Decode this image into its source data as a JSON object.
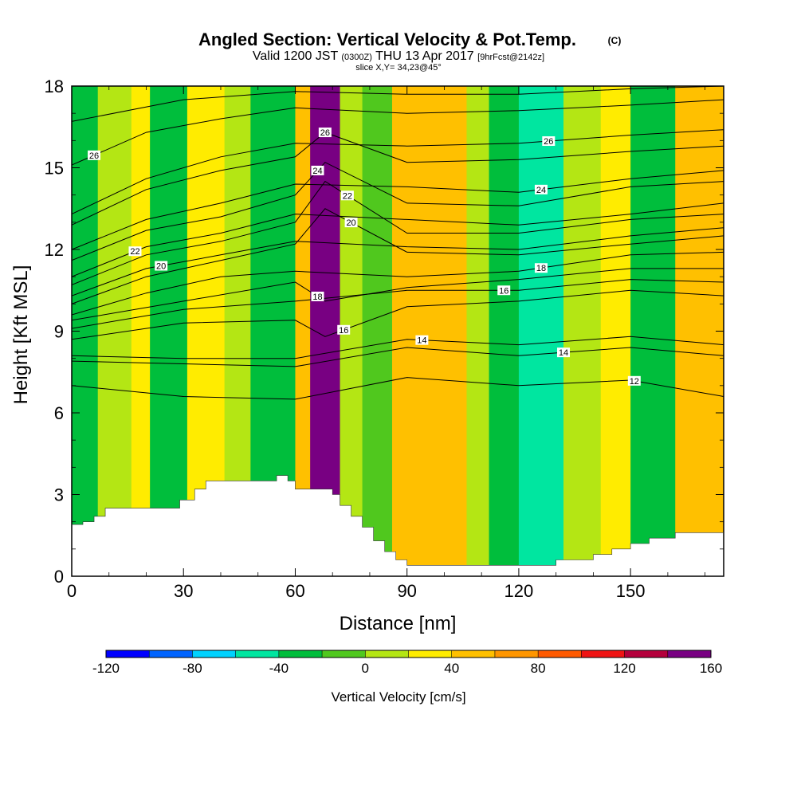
{
  "header": {
    "title": "Angled Section: Vertical Velocity & Pot.Temp.",
    "copyright": "(C)",
    "valid_prefix": "Valid 1200 JST",
    "utc": "(0300Z)",
    "valid_date": "THU 13 Apr 2017",
    "forecast": "[9hrFcst@2142z]",
    "slice": "slice X,Y= 34,23@45°"
  },
  "chart_data": {
    "type": "heatmap",
    "xlabel": "Distance [nm]",
    "ylabel": "Height [Kft MSL]",
    "xlim": [
      0,
      175
    ],
    "ylim": [
      0,
      18
    ],
    "xticks": [
      0,
      30,
      60,
      90,
      120,
      150
    ],
    "yticks": [
      0,
      3,
      6,
      9,
      12,
      15,
      18
    ],
    "colorbar": {
      "label": "Vertical Velocity [cm/s]",
      "tick_labels": [
        "-120",
        "-80",
        "-40",
        "0",
        "40",
        "80",
        "120",
        "160"
      ],
      "levels": [
        -120,
        -100,
        -80,
        -60,
        -40,
        -20,
        0,
        20,
        40,
        60,
        80,
        100,
        120,
        140,
        160
      ],
      "colors": [
        "#0000ff",
        "#0064ff",
        "#00d2ff",
        "#00e6a0",
        "#00be3c",
        "#50c81e",
        "#b4e614",
        "#ffec00",
        "#ffc000",
        "#ff9600",
        "#ff5a00",
        "#f01414",
        "#b4003c",
        "#780082"
      ]
    },
    "colorbar_label_values": [
      -120,
      -80,
      -40,
      0,
      40,
      80,
      120,
      160
    ],
    "vv_bands": [
      {
        "x0": 0,
        "x1": 7,
        "value": -30
      },
      {
        "x0": 7,
        "x1": 16,
        "value": 10
      },
      {
        "x0": 16,
        "x1": 21,
        "value": 35
      },
      {
        "x0": 21,
        "x1": 31,
        "value": -25
      },
      {
        "x0": 31,
        "x1": 41,
        "value": 30
      },
      {
        "x0": 41,
        "x1": 48,
        "value": 5
      },
      {
        "x0": 48,
        "x1": 60,
        "value": -35
      },
      {
        "x0": 60,
        "x1": 64,
        "value": 45
      },
      {
        "x0": 64,
        "x1": 72,
        "value": 150
      },
      {
        "x0": 72,
        "x1": 78,
        "value": 10
      },
      {
        "x0": 78,
        "x1": 86,
        "value": -10
      },
      {
        "x0": 86,
        "x1": 106,
        "value": 45
      },
      {
        "x0": 106,
        "x1": 112,
        "value": 10
      },
      {
        "x0": 112,
        "x1": 120,
        "value": -30
      },
      {
        "x0": 120,
        "x1": 132,
        "value": -45
      },
      {
        "x0": 132,
        "x1": 142,
        "value": 10
      },
      {
        "x0": 142,
        "x1": 150,
        "value": 30
      },
      {
        "x0": 150,
        "x1": 162,
        "value": -25
      },
      {
        "x0": 162,
        "x1": 175,
        "value": 40
      }
    ],
    "terrain": {
      "x": [
        0,
        3,
        6,
        9,
        21,
        29,
        33,
        36,
        55,
        58,
        60,
        65,
        70,
        72,
        75,
        78,
        81,
        84,
        87,
        90,
        125,
        130,
        140,
        145,
        150,
        155,
        162,
        175
      ],
      "height": [
        1.9,
        2.0,
        2.2,
        2.5,
        2.5,
        2.8,
        3.2,
        3.5,
        3.7,
        3.5,
        3.2,
        3.2,
        3.0,
        2.6,
        2.2,
        1.8,
        1.3,
        0.9,
        0.6,
        0.4,
        0.4,
        0.6,
        0.8,
        1.0,
        1.2,
        1.4,
        1.6,
        1.6
      ]
    },
    "theta_contours": [
      {
        "label": "12",
        "x": [
          0,
          30,
          60,
          90,
          120,
          150,
          175
        ],
        "y": [
          7.0,
          6.6,
          6.5,
          7.3,
          7.0,
          7.2,
          6.6
        ],
        "label_x": 151
      },
      {
        "label": "14",
        "x": [
          0,
          30,
          60,
          90,
          120,
          150,
          175
        ],
        "y": [
          7.9,
          7.8,
          7.7,
          8.4,
          8.1,
          8.4,
          8.1
        ],
        "label_x": 132
      },
      {
        "label": "14",
        "x": [
          0,
          30,
          60,
          90,
          120,
          150,
          175
        ],
        "y": [
          8.1,
          8.0,
          8.0,
          8.7,
          8.5,
          8.8,
          8.5
        ],
        "label_x": 94
      },
      {
        "label": "16",
        "x": [
          0,
          30,
          60,
          68,
          90,
          120,
          150,
          175
        ],
        "y": [
          8.7,
          9.3,
          9.4,
          8.8,
          9.9,
          10.1,
          10.5,
          10.3
        ],
        "label_x": 73
      },
      {
        "label": "16",
        "x": [
          0,
          30,
          60,
          90,
          120,
          150,
          175
        ],
        "y": [
          9.1,
          9.8,
          10.1,
          10.5,
          10.5,
          10.9,
          10.8
        ],
        "label_x": 116
      },
      {
        "label": "18",
        "x": [
          0,
          30,
          60,
          68,
          90,
          120,
          150,
          175
        ],
        "y": [
          9.4,
          10.1,
          10.8,
          10.1,
          10.6,
          10.9,
          11.3,
          11.3
        ],
        "label_x": 66
      },
      {
        "label": "18",
        "x": [
          0,
          20,
          40,
          60,
          90,
          120,
          150,
          175
        ],
        "y": [
          9.6,
          10.4,
          11.0,
          11.2,
          11.0,
          11.2,
          11.8,
          11.9
        ],
        "label_x": 126
      },
      {
        "label": "20",
        "x": [
          0,
          20,
          40,
          60,
          68,
          90,
          120,
          150,
          175
        ],
        "y": [
          10.0,
          11.0,
          11.6,
          12.2,
          13.5,
          11.9,
          11.8,
          12.2,
          12.5
        ],
        "label_x": 75
      },
      {
        "label": "20",
        "x": [
          0,
          20,
          40,
          60,
          90,
          120,
          150,
          175
        ],
        "y": [
          10.3,
          11.3,
          11.8,
          12.3,
          12.1,
          12.0,
          12.5,
          12.8
        ],
        "label_x": 24
      },
      {
        "label": "22",
        "x": [
          0,
          20,
          40,
          60,
          68,
          90,
          120,
          150,
          175
        ],
        "y": [
          10.7,
          11.8,
          12.3,
          13.0,
          14.5,
          12.6,
          12.6,
          13.1,
          13.3
        ],
        "label_x": 74
      },
      {
        "label": "22",
        "x": [
          0,
          20,
          40,
          60,
          90,
          120,
          150,
          175
        ],
        "y": [
          11.0,
          12.1,
          12.6,
          13.3,
          13.1,
          12.9,
          13.3,
          13.7
        ],
        "label_x": 17
      },
      {
        "label": "24",
        "x": [
          0,
          20,
          40,
          60,
          68,
          90,
          120,
          150,
          175
        ],
        "y": [
          11.6,
          12.7,
          13.2,
          14.0,
          15.2,
          13.7,
          13.6,
          14.3,
          14.5
        ],
        "label_x": 66
      },
      {
        "label": "24",
        "x": [
          0,
          20,
          40,
          60,
          90,
          120,
          150,
          175
        ],
        "y": [
          12.0,
          13.1,
          13.7,
          14.4,
          14.3,
          14.1,
          14.6,
          14.9
        ],
        "label_x": 126
      },
      {
        "label": "26",
        "x": [
          0,
          20,
          40,
          60,
          68,
          90,
          120,
          150,
          175
        ],
        "y": [
          12.9,
          14.2,
          14.9,
          15.4,
          16.3,
          15.2,
          15.3,
          15.6,
          15.8
        ],
        "label_x": 68
      },
      {
        "label": "26",
        "x": [
          0,
          20,
          40,
          60,
          90,
          120,
          150,
          175
        ],
        "y": [
          13.3,
          14.6,
          15.4,
          15.9,
          15.8,
          15.9,
          16.2,
          16.4
        ],
        "label_x": 128
      },
      {
        "label": "26",
        "x": [
          0,
          20,
          40,
          60,
          90,
          120,
          150,
          175
        ],
        "y": [
          15.1,
          16.3,
          16.8,
          17.2,
          17.0,
          17.1,
          17.3,
          17.5
        ],
        "label_x": 6
      },
      {
        "label": "",
        "x": [
          0,
          30,
          60,
          90,
          120,
          150,
          175
        ],
        "y": [
          16.7,
          17.5,
          17.8,
          17.7,
          17.7,
          17.9,
          18.0
        ],
        "label_x": 0
      }
    ]
  }
}
